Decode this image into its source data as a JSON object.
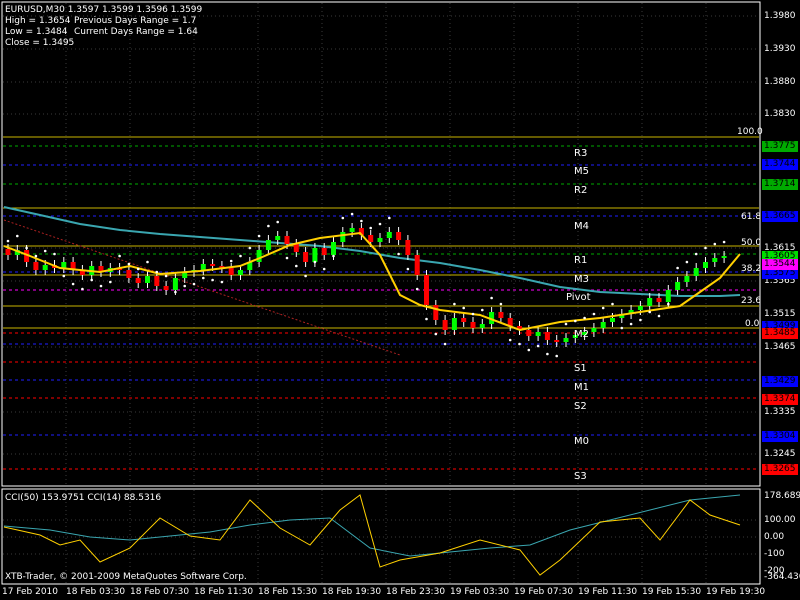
{
  "header": {
    "symbol_line": "EURUSD,M30  1.3597 1.3599 1.3596 1.3599",
    "high": "High = 1.3654",
    "prev_range": "Previous Days Range = 1.7",
    "low": "Low = 1.3484",
    "cur_range": "Current Days Range = 1.64",
    "close": "Close = 1.3495"
  },
  "price_axis": [
    "1.3980",
    "1.3930",
    "1.3880",
    "1.3830",
    "1.3615",
    "1.3565",
    "1.3515",
    "1.3465",
    "1.3335",
    "1.3245"
  ],
  "level_tags": [
    {
      "text": "1.3775",
      "bg": "#00aa00",
      "fg": "#000000"
    },
    {
      "text": "1.3744",
      "bg": "#0000ff",
      "fg": "#000000"
    },
    {
      "text": "1.3714",
      "bg": "#00aa00",
      "fg": "#000000"
    },
    {
      "text": "1.3665",
      "bg": "#0000ff",
      "fg": "#000000"
    },
    {
      "text": "1.3605",
      "bg": "#00dd00",
      "fg": "#000000"
    },
    {
      "text": "1.3575",
      "bg": "#0000ff",
      "fg": "#000000"
    },
    {
      "text": "1.3544",
      "bg": "#ff00ff",
      "fg": "#000000"
    },
    {
      "text": "1.3499",
      "bg": "#0000ff",
      "fg": "#000000"
    },
    {
      "text": "1.3485",
      "bg": "#ff0000",
      "fg": "#000000"
    },
    {
      "text": "1.3429",
      "bg": "#0000ff",
      "fg": "#000000"
    },
    {
      "text": "1.3374",
      "bg": "#ff0000",
      "fg": "#000000"
    },
    {
      "text": "1.3304",
      "bg": "#0000ff",
      "fg": "#000000"
    },
    {
      "text": "1.3265",
      "bg": "#ff0000",
      "fg": "#000000"
    }
  ],
  "pivot_labels": [
    "R3",
    "M5",
    "R2",
    "M4",
    "R1",
    "M3",
    "Pivot",
    "M2",
    "S1",
    "M1",
    "S2",
    "M0",
    "S3"
  ],
  "fib_labels": [
    "100.0",
    "61.8",
    "50.0",
    "38.2",
    "23.6",
    "0.0"
  ],
  "indicator": {
    "title": "CCI(50) 153.9751  CCI(14) 88.5316",
    "axis": [
      "178.6895",
      "100.00",
      "0.00",
      "-100",
      "-200",
      "-364.436"
    ]
  },
  "copyright": "XTB-Trader, © 2001-2009 MetaQuotes Software Corp.",
  "time_axis": [
    "17 Feb 2010",
    "18 Feb 03:30",
    "18 Feb 07:30",
    "18 Feb 11:30",
    "18 Feb 15:30",
    "18 Feb 19:30",
    "18 Feb 23:30",
    "19 Feb 03:30",
    "19 Feb 07:30",
    "19 Feb 11:30",
    "19 Feb 15:30",
    "19 Feb 19:30"
  ],
  "colors": {
    "background": "#000000",
    "grid": "#3a3a3a",
    "bull_candle": "#00ff00",
    "bear_candle": "#ff0000",
    "ma_fast": "#ffd000",
    "ma_slow": "#3aa6b0",
    "sar_dots": "#ffffff",
    "cci_fast": "#ffd000",
    "cci_slow": "#3aa6b0"
  }
}
